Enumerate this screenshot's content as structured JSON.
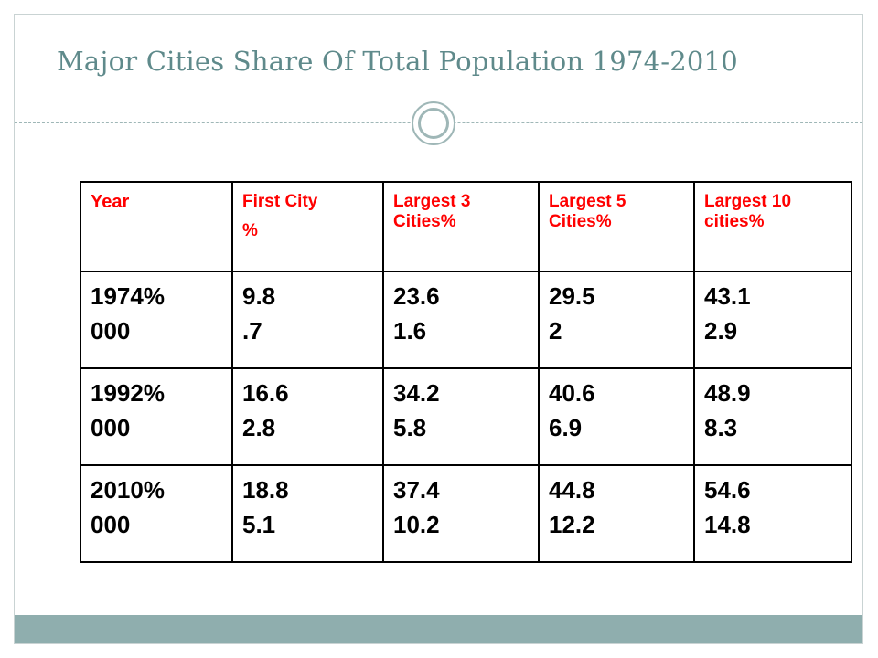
{
  "slide": {
    "title": "Major Cities  Share Of Total Population 1974-2010"
  },
  "table": {
    "headers": [
      {
        "line1": "Year",
        "line2": ""
      },
      {
        "line1": "First City",
        "line2": "%"
      },
      {
        "line1": "Largest 3 Cities%",
        "line2": ""
      },
      {
        "line1": "Largest 5 Cities%",
        "line2": ""
      },
      {
        "line1": "Largest 10 cities%",
        "line2": ""
      }
    ],
    "rows": [
      [
        {
          "top": "1974%",
          "bottom": "000"
        },
        {
          "top": "9.8",
          "bottom": ".7"
        },
        {
          "top": "23.6",
          "bottom": "1.6"
        },
        {
          "top": "29.5",
          "bottom": "2"
        },
        {
          "top": "43.1",
          "bottom": "2.9"
        }
      ],
      [
        {
          "top": "1992%",
          "bottom": "000"
        },
        {
          "top": "16.6",
          "bottom": "2.8"
        },
        {
          "top": "34.2",
          "bottom": "5.8"
        },
        {
          "top": "40.6",
          "bottom": "6.9"
        },
        {
          "top": "48.9",
          "bottom": "8.3"
        }
      ],
      [
        {
          "top": "2010%",
          "bottom": "000"
        },
        {
          "top": "18.8",
          "bottom": "5.1"
        },
        {
          "top": "37.4",
          "bottom": "10.2"
        },
        {
          "top": "44.8",
          "bottom": "12.2"
        },
        {
          "top": "54.6",
          "bottom": "14.8"
        }
      ]
    ]
  },
  "colors": {
    "title": "#5f8a8b",
    "header_text": "#ff0000",
    "accent_bar": "#8faeae",
    "ornament": "#9fb7b7"
  }
}
